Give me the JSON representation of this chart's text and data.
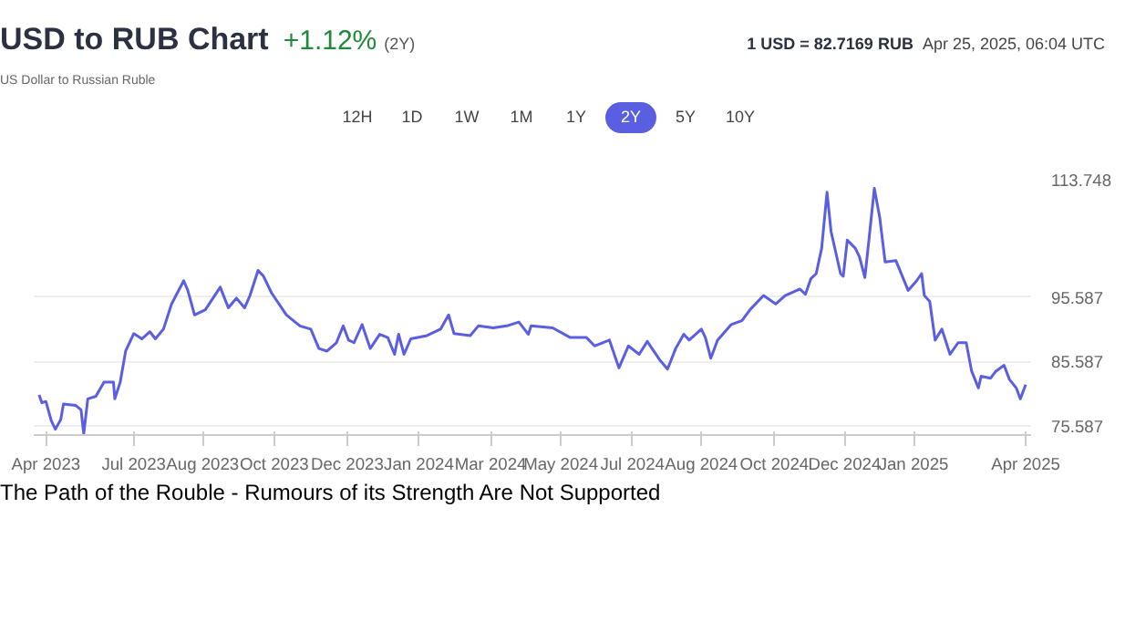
{
  "chart_data": {
    "type": "line",
    "title": "USD to RUB Chart",
    "subtitle": "US Dollar to Russian Ruble",
    "annotations": [
      "+1.12%",
      "(2Y)",
      "1 USD = 82.7169 RUB",
      "Apr 25, 2025, 06:04 UTC",
      "12H",
      "1D",
      "1W",
      "1M",
      "1Y",
      "2Y",
      "5Y",
      "10Y",
      "The Path of the Rouble - Rumours of its Strength Are Not Supported"
    ],
    "x": [
      "2023-04-25",
      "2023-04-27",
      "2023-04-30",
      "2023-05-04",
      "2023-05-07",
      "2023-05-11",
      "2023-05-13",
      "2023-05-22",
      "2023-05-26",
      "2023-05-28",
      "2023-05-31",
      "2023-06-06",
      "2023-06-12",
      "2023-06-19",
      "2023-06-20",
      "2023-06-24",
      "2023-06-28",
      "2023-07-04",
      "2023-07-10",
      "2023-07-16",
      "2023-07-20",
      "2023-07-26",
      "2023-08-01",
      "2023-08-10",
      "2023-08-13",
      "2023-08-18",
      "2023-08-26",
      "2023-09-06",
      "2023-09-12",
      "2023-09-18",
      "2023-09-24",
      "2023-09-28",
      "2023-10-04",
      "2023-10-08",
      "2023-10-14",
      "2023-10-25",
      "2023-11-04",
      "2023-11-12",
      "2023-11-18",
      "2023-11-24",
      "2023-12-01",
      "2023-12-06",
      "2023-12-10",
      "2023-12-14",
      "2023-12-20",
      "2023-12-26",
      "2024-01-02",
      "2024-01-08",
      "2024-01-13",
      "2024-01-16",
      "2024-01-20",
      "2024-01-25",
      "2024-02-06",
      "2024-02-16",
      "2024-02-22",
      "2024-02-26",
      "2024-03-09",
      "2024-03-15",
      "2024-03-26",
      "2024-04-05",
      "2024-04-14",
      "2024-04-21",
      "2024-04-23",
      "2024-05-09",
      "2024-05-22",
      "2024-06-03",
      "2024-06-09",
      "2024-06-20",
      "2024-06-27",
      "2024-07-04",
      "2024-07-12",
      "2024-07-18",
      "2024-07-27",
      "2024-08-02",
      "2024-08-08",
      "2024-08-14",
      "2024-08-18",
      "2024-08-27",
      "2024-08-30",
      "2024-09-03",
      "2024-09-08",
      "2024-09-18",
      "2024-09-26",
      "2024-10-02",
      "2024-10-12",
      "2024-10-21",
      "2024-10-28",
      "2024-11-08",
      "2024-11-12",
      "2024-11-16",
      "2024-11-20",
      "2024-11-24",
      "2024-11-28",
      "2024-12-01",
      "2024-12-08",
      "2024-12-10",
      "2024-12-13",
      "2024-12-19",
      "2024-12-22",
      "2024-12-26",
      "2024-12-29",
      "2025-01-02",
      "2025-01-06",
      "2025-01-10",
      "2025-01-18",
      "2025-01-27",
      "2025-02-02",
      "2025-02-06",
      "2025-02-08",
      "2025-02-12",
      "2025-02-16",
      "2025-02-21",
      "2025-02-27",
      "2025-03-05",
      "2025-03-11",
      "2025-03-15",
      "2025-03-20",
      "2025-03-22",
      "2025-03-29",
      "2025-04-02",
      "2025-04-08",
      "2025-04-12",
      "2025-04-17",
      "2025-04-20",
      "2025-04-24"
    ],
    "series": [
      {
        "color": "#5a5ee0",
        "values": [
          80.4,
          79.2,
          79.4,
          76.4,
          75.1,
          76.6,
          79.0,
          78.8,
          78.1,
          74.4,
          79.8,
          80.2,
          82.4,
          82.4,
          79.8,
          82.4,
          87.2,
          89.9,
          89.1,
          90.2,
          89.1,
          90.6,
          94.5,
          98.1,
          96.6,
          92.8,
          93.6,
          97.1,
          93.9,
          95.4,
          93.9,
          95.8,
          99.7,
          98.8,
          96.2,
          92.8,
          91.1,
          90.6,
          87.6,
          87.2,
          88.5,
          91.1,
          88.9,
          88.5,
          91.3,
          87.6,
          89.8,
          89.3,
          86.7,
          89.8,
          86.7,
          89.1,
          89.6,
          90.6,
          92.8,
          89.9,
          89.6,
          91.1,
          90.8,
          91.1,
          91.7,
          89.8,
          91.1,
          90.8,
          89.3,
          89.3,
          88.0,
          88.9,
          84.6,
          88.0,
          86.7,
          88.7,
          85.9,
          84.4,
          87.6,
          89.8,
          88.9,
          90.6,
          89.3,
          86.1,
          88.9,
          91.3,
          91.9,
          93.6,
          95.8,
          94.5,
          95.8,
          96.8,
          96.0,
          98.4,
          99.2,
          103.1,
          111.8,
          105.7,
          99.2,
          98.8,
          104.4,
          103.1,
          101.8,
          98.6,
          104.4,
          112.4,
          107.9,
          101.0,
          101.2,
          96.6,
          98.0,
          99.2,
          95.8,
          94.9,
          88.9,
          90.6,
          86.7,
          88.5,
          88.5,
          84.1,
          81.5,
          83.3,
          83.0,
          84.1,
          85.0,
          82.8,
          81.5,
          79.8,
          82.0
        ]
      }
    ],
    "xlim": [
      "2023-04-21",
      "2025-04-28"
    ],
    "xticks": [
      {
        "value": "2023-04-30",
        "label": "Apr 2023"
      },
      {
        "value": "2023-07-04",
        "label": "Jul 2023"
      },
      {
        "value": "2023-08-24",
        "label": "Aug 2023"
      },
      {
        "value": "2023-10-16",
        "label": "Oct 2023"
      },
      {
        "value": "2023-12-09",
        "label": "Dec 2023"
      },
      {
        "value": "2024-01-31",
        "label": "Jan 2024"
      },
      {
        "value": "2024-03-24",
        "label": "Mar 2024"
      },
      {
        "value": "2024-05-15",
        "label": "May 2024"
      },
      {
        "value": "2024-07-07",
        "label": "Jul 2024"
      },
      {
        "value": "2024-08-27",
        "label": "Aug 2024"
      },
      {
        "value": "2024-10-20",
        "label": "Oct 2024"
      },
      {
        "value": "2024-12-11",
        "label": "Dec 2024"
      },
      {
        "value": "2025-01-31",
        "label": "Jan 2025"
      },
      {
        "value": "2025-04-24",
        "label": "Apr 2025"
      }
    ],
    "ylim": [
      74.2,
      113.748
    ],
    "yticks": [
      75.587,
      85.587,
      95.587,
      113.748
    ],
    "grid": "y",
    "marker": "none",
    "line_style": "solid"
  }
}
